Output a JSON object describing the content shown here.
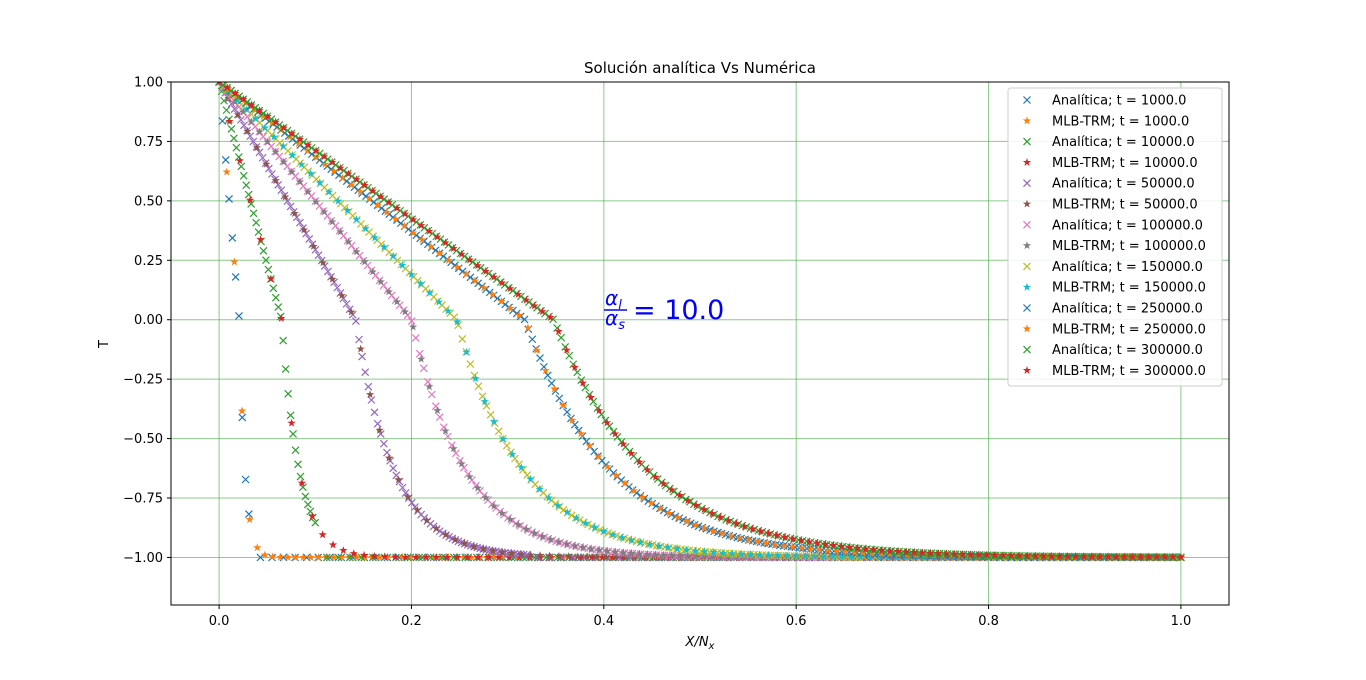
{
  "chart_data": {
    "type": "scatter",
    "title": "Solución analítica Vs Numérica",
    "xlabel": "X/N",
    "xlabel_sub": "x",
    "ylabel": "T",
    "xlim": [
      -0.05,
      1.05
    ],
    "ylim": [
      -1.2,
      1.0
    ],
    "xticks": [
      0.0,
      0.2,
      0.4,
      0.6,
      0.8,
      1.0
    ],
    "xtick_labels": [
      "0.0",
      "0.2",
      "0.4",
      "0.6",
      "0.8",
      "1.0"
    ],
    "yticks": [
      1.0,
      0.75,
      0.5,
      0.25,
      0.0,
      -0.25,
      -0.5,
      -0.75,
      -1.0
    ],
    "ytick_labels": [
      "1.00",
      "0.75",
      "0.50",
      "0.25",
      "0.00",
      "−0.25",
      "−0.50",
      "−0.75",
      "−1.00"
    ],
    "grid": true,
    "grid_color": "#2ca02c",
    "legend_position": "upper right",
    "annotation": {
      "numerator": "α",
      "numerator_sub": "l",
      "denominator": "α",
      "denominator_sub": "s",
      "value_text": "= 10.0",
      "color": "#0000ff",
      "x": 0.4,
      "y": 0.0
    },
    "series": [
      {
        "name": "Analítica; t = 1000.0",
        "marker": "x",
        "color": "#1f77b4",
        "front": 0.021,
        "x_end": 0.031,
        "points": 10
      },
      {
        "name": "MLB-TRM; t = 1000.0",
        "marker": "star",
        "color": "#ff7f0e",
        "front": 0.021,
        "x_end": 0.31,
        "points": 40
      },
      {
        "name": "Analítica; t = 10000.0",
        "marker": "x",
        "color": "#2ca02c",
        "front": 0.065,
        "x_end": 0.1,
        "points": 40
      },
      {
        "name": "MLB-TRM; t = 10000.0",
        "marker": "star",
        "color": "#d62728",
        "front": 0.065,
        "x_end": 0.42,
        "points": 40
      },
      {
        "name": "Analítica; t = 50000.0",
        "marker": "x",
        "color": "#9467bd",
        "front": 0.142,
        "x_end": 0.32,
        "points": 100
      },
      {
        "name": "MLB-TRM; t = 50000.0",
        "marker": "star",
        "color": "#8c564b",
        "front": 0.142,
        "x_end": 0.53,
        "points": 55
      },
      {
        "name": "Analítica; t = 100000.0",
        "marker": "x",
        "color": "#e377c2",
        "front": 0.2,
        "x_end": 0.58,
        "points": 140
      },
      {
        "name": "MLB-TRM; t = 100000.0",
        "marker": "star",
        "color": "#7f7f7f",
        "front": 0.2,
        "x_end": 0.58,
        "points": 70
      },
      {
        "name": "Analítica; t = 150000.0",
        "marker": "x",
        "color": "#bcbd22",
        "front": 0.247,
        "x_end": 0.67,
        "points": 160
      },
      {
        "name": "MLB-TRM; t = 150000.0",
        "marker": "star",
        "color": "#17becf",
        "front": 0.247,
        "x_end": 0.8,
        "points": 85
      },
      {
        "name": "Analítica; t = 250000.0",
        "marker": "x",
        "color": "#1f77b4",
        "front": 0.318,
        "x_end": 0.8,
        "points": 200
      },
      {
        "name": "MLB-TRM; t = 250000.0",
        "marker": "star",
        "color": "#ff7f0e",
        "front": 0.318,
        "x_end": 1.0,
        "points": 110
      },
      {
        "name": "Analítica; t = 300000.0",
        "marker": "x",
        "color": "#2ca02c",
        "front": 0.348,
        "x_end": 1.0,
        "points": 240
      },
      {
        "name": "MLB-TRM; t = 300000.0",
        "marker": "star",
        "color": "#d62728",
        "front": 0.348,
        "x_end": 1.0,
        "points": 120
      }
    ]
  }
}
